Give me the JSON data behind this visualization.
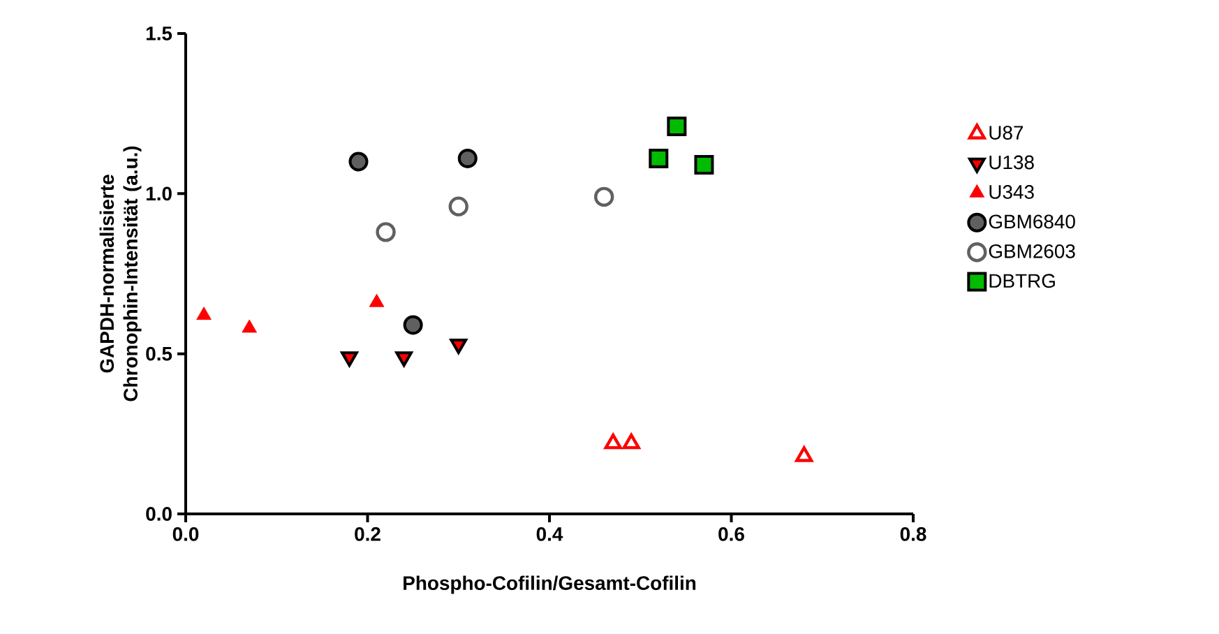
{
  "chart_data": {
    "type": "scatter",
    "xlabel": "Phospho-Cofilin/Gesamt-Cofilin",
    "ylabel": "GAPDH-normalisierte Chronophin-Intensität (a.u.)",
    "xlim": [
      0,
      0.8
    ],
    "ylim": [
      0,
      1.5
    ],
    "xticks": [
      {
        "value": 0,
        "label": "0.0"
      },
      {
        "value": 0.2,
        "label": "0.2"
      },
      {
        "value": 0.4,
        "label": "0.4"
      },
      {
        "value": 0.6,
        "label": "0.6"
      },
      {
        "value": 0.8,
        "label": "0.8"
      }
    ],
    "yticks": [
      {
        "value": 0,
        "label": "0.0"
      },
      {
        "value": 0.5,
        "label": "0.5"
      },
      {
        "value": 1.0,
        "label": "1.0"
      },
      {
        "value": 1.5,
        "label": "1.5"
      }
    ],
    "grid": false,
    "legend": "right",
    "series": [
      {
        "name": "U87",
        "color": "#ff0000",
        "marker": "triangle-open",
        "x": [
          0.47,
          0.49,
          0.68
        ],
        "values": [
          0.22,
          0.22,
          0.18
        ]
      },
      {
        "name": "U138",
        "color": "#ff0000",
        "marker": "triangle-down-edged",
        "x": [
          0.18,
          0.24,
          0.3
        ],
        "values": [
          0.49,
          0.49,
          0.53
        ]
      },
      {
        "name": "U343",
        "color": "#ff0000",
        "marker": "triangle",
        "x": [
          0.02,
          0.07,
          0.21
        ],
        "values": [
          0.62,
          0.58,
          0.66
        ]
      },
      {
        "name": "GBM6840",
        "color": "#606060",
        "marker": "circle-edged",
        "x": [
          0.19,
          0.31,
          0.25
        ],
        "values": [
          1.1,
          1.11,
          0.59
        ]
      },
      {
        "name": "GBM2603",
        "color": "#606060",
        "marker": "circle-open",
        "x": [
          0.22,
          0.3,
          0.46
        ],
        "values": [
          0.88,
          0.96,
          0.99
        ]
      },
      {
        "name": "DBTRG",
        "color": "#00bb00",
        "marker": "square-edged",
        "x": [
          0.54,
          0.52,
          0.57
        ],
        "values": [
          1.21,
          1.11,
          1.09
        ]
      }
    ]
  }
}
